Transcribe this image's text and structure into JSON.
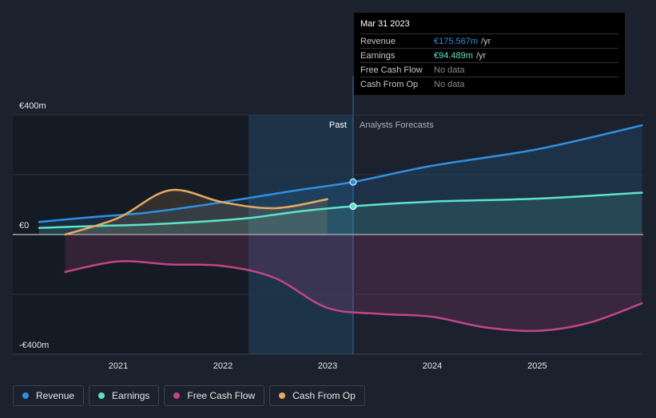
{
  "chart_data": {
    "type": "line",
    "y_unit": "€m",
    "ylim": [
      -400,
      400
    ],
    "y_tick_labels": [
      "€400m",
      "€0",
      "-€400m"
    ],
    "x_tick_labels": [
      "2021",
      "2022",
      "2023",
      "2024",
      "2025"
    ],
    "past_label": "Past",
    "forecast_label": "Analysts Forecasts",
    "series": [
      {
        "name": "Revenue",
        "color": "#2f8fe0",
        "x": [
          "2020-03-31",
          "2020-09-30",
          "2021-03-31",
          "2021-09-30",
          "2022-03-31",
          "2022-09-30",
          "2023-03-31",
          "2024-01-01",
          "2025-01-01",
          "2026-01-01"
        ],
        "values": [
          42,
          58,
          72,
          95,
          122,
          150,
          175.567,
          230,
          285,
          365
        ]
      },
      {
        "name": "Earnings",
        "color": "#5fe3c8",
        "x": [
          "2020-03-31",
          "2020-09-30",
          "2021-03-31",
          "2021-09-30",
          "2022-03-31",
          "2022-09-30",
          "2023-03-31",
          "2024-01-01",
          "2025-01-01",
          "2026-01-01"
        ],
        "values": [
          22,
          28,
          33,
          42,
          55,
          78,
          94.489,
          110,
          120,
          140
        ]
      },
      {
        "name": "Free Cash Flow",
        "color": "#c0458a",
        "x": [
          "2020-06-30",
          "2020-12-31",
          "2021-06-30",
          "2021-12-31",
          "2022-06-30",
          "2022-12-31",
          "2023-06-30",
          "2024-01-01",
          "2024-07-01",
          "2025-01-01",
          "2025-07-01",
          "2026-01-01"
        ],
        "values": [
          -125,
          -90,
          -100,
          -105,
          -145,
          -245,
          -265,
          -275,
          -310,
          -322,
          -295,
          -230
        ]
      },
      {
        "name": "Cash From Op",
        "color": "#e6ab5f",
        "x": [
          "2020-06-30",
          "2020-12-31",
          "2021-06-30",
          "2021-12-31",
          "2022-06-30",
          "2022-12-31"
        ],
        "values": [
          0,
          55,
          148,
          108,
          88,
          118
        ]
      }
    ]
  },
  "tooltip": {
    "date": "Mar 31 2023",
    "rows": [
      {
        "label": "Revenue",
        "value": "€175.567m",
        "unit": "/yr",
        "color": "#2f8fe0"
      },
      {
        "label": "Earnings",
        "value": "€94.489m",
        "unit": "/yr",
        "color": "#5fe3c8"
      },
      {
        "label": "Free Cash Flow",
        "value": "No data",
        "unit": "",
        "color": "#888888"
      },
      {
        "label": "Cash From Op",
        "value": "No data",
        "unit": "",
        "color": "#888888"
      }
    ]
  },
  "legend": [
    {
      "label": "Revenue",
      "color": "#2f8fe0"
    },
    {
      "label": "Earnings",
      "color": "#5fe3c8"
    },
    {
      "label": "Free Cash Flow",
      "color": "#c0458a"
    },
    {
      "label": "Cash From Op",
      "color": "#e6ab5f"
    }
  ]
}
